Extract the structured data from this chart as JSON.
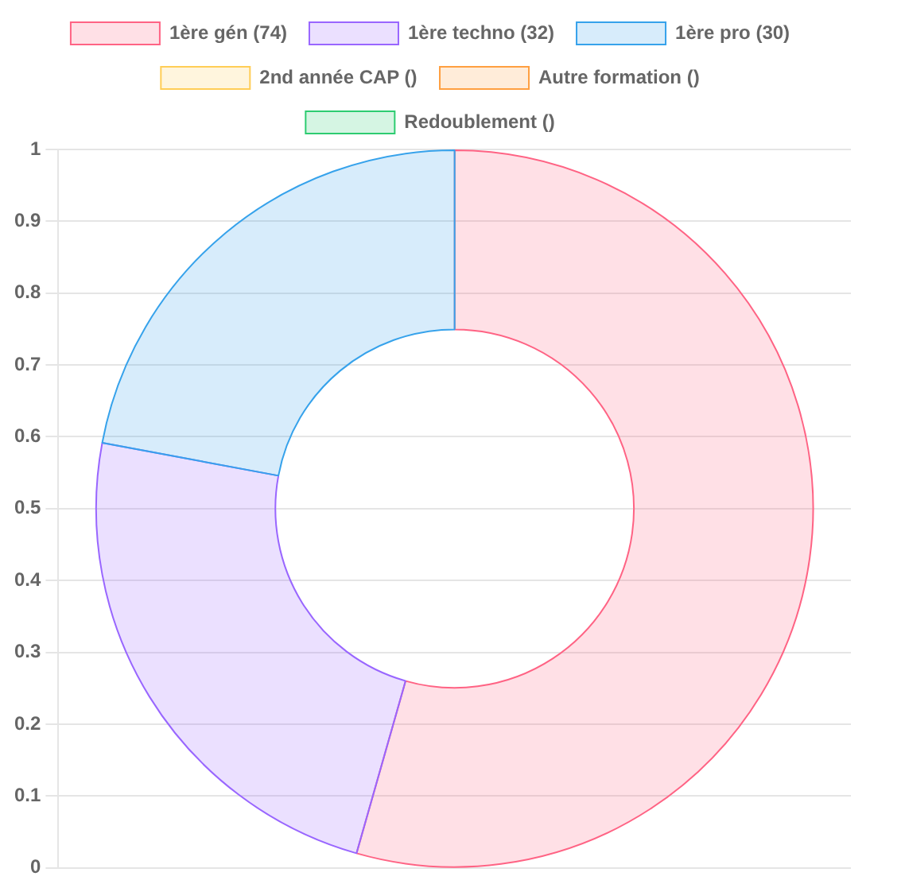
{
  "chart_data": {
    "type": "donut",
    "categories": [
      "1ère gén (74)",
      "1ère techno (32)",
      "1ère pro (30)",
      "2nd année CAP ()",
      "Autre formation ()",
      "Redoublement ()"
    ],
    "values": [
      74,
      32,
      30,
      0,
      0,
      0
    ],
    "colors": [
      "#ff6384",
      "#9966ff",
      "#36a2eb",
      "#ffcd56",
      "#ff9f40",
      "#2ecc71"
    ],
    "annotations": [
      "0",
      "0.1",
      "0.2",
      "0.3",
      "0.4",
      "0.5",
      "0.6",
      "0.7",
      "0.8",
      "0.9",
      "1"
    ],
    "grid": "y",
    "legend": "top"
  }
}
